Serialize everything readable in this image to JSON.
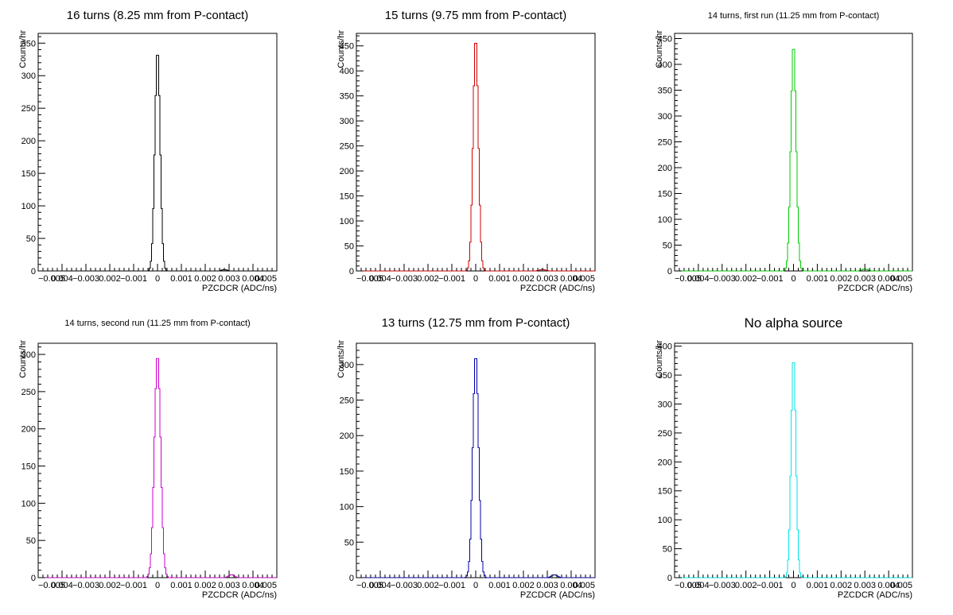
{
  "chart_data": [
    {
      "type": "histogram",
      "title": "16 turns (8.25 mm from P-contact)",
      "xlabel": "PZCDCR (ADC/ns)",
      "ylabel": "Counts/hr",
      "xlim": [
        -0.005,
        0.005
      ],
      "ylim": [
        0,
        365
      ],
      "yticks": [
        0,
        50,
        100,
        150,
        200,
        250,
        300,
        350
      ],
      "xticks": [
        "−0.005",
        "0.004",
        "−0.003",
        "0.002",
        "−0.001",
        "0",
        "0.001",
        "0.002",
        "0.003",
        "0.004",
        "0.005"
      ],
      "color": "#000000",
      "peak_x": 0.0,
      "peak_y": 340,
      "sigma": 0.00011,
      "secondary": [
        {
          "x": 0.0028,
          "y": 2
        }
      ]
    },
    {
      "type": "histogram",
      "title": "15 turns (9.75 mm from P-contact)",
      "xlabel": "PZCDCR (ADC/ns)",
      "ylabel": "Counts/hr",
      "xlim": [
        -0.005,
        0.005
      ],
      "ylim": [
        0,
        475
      ],
      "yticks": [
        0,
        50,
        100,
        150,
        200,
        250,
        300,
        350,
        400,
        450
      ],
      "xticks": [
        "−0.005",
        "0.004",
        "−0.003",
        "0.002",
        "−0.001",
        "0",
        "0.001",
        "0.002",
        "0.003",
        "0.004",
        "0.005"
      ],
      "color": "#cc0000",
      "peak_x": 0.0,
      "peak_y": 467,
      "sigma": 0.00011,
      "secondary": [
        {
          "x": 0.0028,
          "y": 3
        }
      ]
    },
    {
      "type": "histogram",
      "title": "14 turns, first run (11.25 mm from P-contact)",
      "xlabel": "PZCDCR (ADC/ns)",
      "ylabel": "Counts/hr",
      "xlim": [
        -0.005,
        0.005
      ],
      "ylim": [
        0,
        460
      ],
      "yticks": [
        0,
        50,
        100,
        150,
        200,
        250,
        300,
        350,
        400,
        450
      ],
      "xticks": [
        "−0.005",
        "0.004",
        "−0.003",
        "0.002",
        "−0.001",
        "0",
        "0.001",
        "0.002",
        "0.003",
        "0.004",
        "0.005"
      ],
      "color": "#00cc00",
      "peak_x": 0.0,
      "peak_y": 440,
      "sigma": 0.00011,
      "secondary": [
        {
          "x": 0.003,
          "y": 4
        }
      ]
    },
    {
      "type": "histogram",
      "title": "14 turns, second run (11.25 mm from P-contact)",
      "xlabel": "PZCDCR (ADC/ns)",
      "ylabel": "Counts/hr",
      "xlim": [
        -0.005,
        0.005
      ],
      "ylim": [
        0,
        315
      ],
      "yticks": [
        0,
        50,
        100,
        150,
        200,
        250,
        300
      ],
      "xticks": [
        "−0.005",
        "0.004",
        "−0.003",
        "0.002",
        "−0.001",
        "0",
        "0.001",
        "0.002",
        "0.003",
        "0.004",
        "0.005"
      ],
      "color": "#cc00cc",
      "peak_x": 0.0,
      "peak_y": 300,
      "sigma": 0.00013,
      "secondary": [
        {
          "x": 0.0031,
          "y": 4
        }
      ]
    },
    {
      "type": "histogram",
      "title": "13 turns (12.75 mm from P-contact)",
      "xlabel": "PZCDCR (ADC/ns)",
      "ylabel": "Counts/hr",
      "xlim": [
        -0.005,
        0.005
      ],
      "ylim": [
        0,
        330
      ],
      "yticks": [
        0,
        50,
        100,
        150,
        200,
        250,
        300
      ],
      "xticks": [
        "−0.005",
        "0.004",
        "−0.003",
        "0.002",
        "−0.001",
        "0",
        "0.001",
        "0.002",
        "0.003",
        "0.004",
        "0.005"
      ],
      "color": "#0000aa",
      "peak_x": 0.0,
      "peak_y": 315,
      "sigma": 0.00012,
      "secondary": [
        {
          "x": 0.0033,
          "y": 4
        }
      ]
    },
    {
      "type": "histogram",
      "title": "No alpha source",
      "xlabel": "PZCDCR (ADC/ns)",
      "ylabel": "Counts/hr",
      "xlim": [
        -0.005,
        0.005
      ],
      "ylim": [
        0,
        405
      ],
      "yticks": [
        0,
        50,
        100,
        150,
        200,
        250,
        300,
        350,
        400
      ],
      "xticks": [
        "−0.005",
        "0.004",
        "−0.003",
        "0.002",
        "−0.001",
        "0",
        "0.001",
        "0.002",
        "0.003",
        "0.004",
        "0.005"
      ],
      "color": "#00e5e5",
      "peak_x": 0.0,
      "peak_y": 383,
      "sigma": 0.0001,
      "secondary": []
    }
  ]
}
